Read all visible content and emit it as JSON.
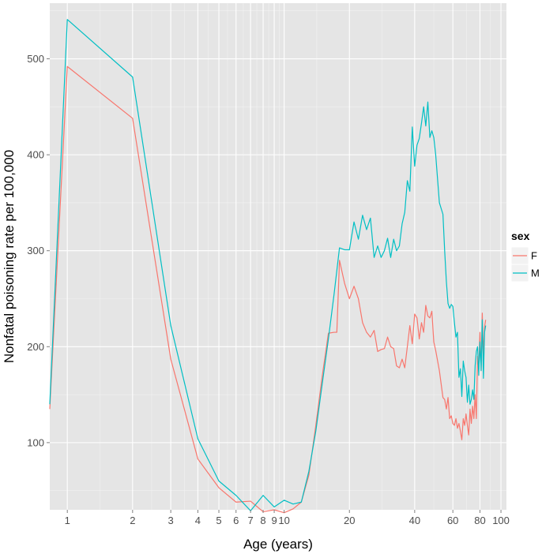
{
  "chart_data": {
    "type": "line",
    "xlabel": "Age (years)",
    "ylabel": "Nonfatal poisoning rate per 100,000",
    "x_scale": "log",
    "xlim": [
      0.83,
      106
    ],
    "ylim": [
      30,
      558
    ],
    "x_ticks": [
      1,
      2,
      3,
      4,
      5,
      6,
      7,
      8,
      9,
      10,
      20,
      40,
      60,
      80,
      100
    ],
    "x_tick_labels": [
      "1",
      "2",
      "3",
      "4",
      "5",
      "6",
      "7",
      "8",
      "9",
      "10",
      "20",
      "40",
      "60",
      "80",
      "100"
    ],
    "y_ticks": [
      100,
      200,
      300,
      400,
      500
    ],
    "y_tick_labels": [
      "100",
      "200",
      "300",
      "400",
      "500"
    ],
    "grid": true,
    "legend": {
      "title": "sex",
      "position": "right"
    },
    "series": [
      {
        "name": "F",
        "color": "#f8766d",
        "points": [
          [
            0.83,
            135
          ],
          [
            1,
            492
          ],
          [
            2,
            438
          ],
          [
            3,
            187
          ],
          [
            4,
            83
          ],
          [
            5,
            53
          ],
          [
            6,
            38
          ],
          [
            7,
            39
          ],
          [
            8,
            28
          ],
          [
            9,
            30
          ],
          [
            10,
            27
          ],
          [
            11,
            31
          ],
          [
            12,
            38
          ],
          [
            13,
            66
          ],
          [
            14,
            118
          ],
          [
            15,
            170
          ],
          [
            16,
            214
          ],
          [
            17,
            215
          ],
          [
            17.5,
            215
          ],
          [
            18,
            290
          ],
          [
            19,
            266
          ],
          [
            20,
            250
          ],
          [
            21,
            263
          ],
          [
            22,
            250
          ],
          [
            23,
            225
          ],
          [
            24,
            215
          ],
          [
            25,
            210
          ],
          [
            26,
            217
          ],
          [
            27,
            195
          ],
          [
            28,
            197
          ],
          [
            29,
            198
          ],
          [
            30,
            210
          ],
          [
            31,
            200
          ],
          [
            32,
            198
          ],
          [
            33,
            180
          ],
          [
            34,
            178
          ],
          [
            35,
            187
          ],
          [
            36,
            178
          ],
          [
            37,
            200
          ],
          [
            38,
            222
          ],
          [
            39,
            203
          ],
          [
            40,
            234
          ],
          [
            41,
            230
          ],
          [
            42,
            208
          ],
          [
            43,
            225
          ],
          [
            44,
            215
          ],
          [
            45,
            243
          ],
          [
            46,
            232
          ],
          [
            47,
            230
          ],
          [
            48,
            237
          ],
          [
            49,
            205
          ],
          [
            50,
            196
          ],
          [
            52,
            175
          ],
          [
            54,
            147
          ],
          [
            55,
            145
          ],
          [
            56,
            135
          ],
          [
            57,
            147
          ],
          [
            58,
            125
          ],
          [
            59,
            128
          ],
          [
            60,
            120
          ],
          [
            61,
            118
          ],
          [
            62,
            125
          ],
          [
            63,
            115
          ],
          [
            64,
            120
          ],
          [
            65,
            112
          ],
          [
            66,
            103
          ],
          [
            67,
            125
          ],
          [
            68,
            118
          ],
          [
            69,
            130
          ],
          [
            70,
            118
          ],
          [
            71,
            108
          ],
          [
            72,
            135
          ],
          [
            73,
            120
          ],
          [
            74,
            138
          ],
          [
            75,
            125
          ],
          [
            76,
            150
          ],
          [
            77,
            125
          ],
          [
            78,
            190
          ],
          [
            79,
            178
          ],
          [
            80,
            215
          ],
          [
            81,
            175
          ],
          [
            82,
            235
          ],
          [
            83,
            190
          ],
          [
            84,
            220
          ],
          [
            85,
            228
          ]
        ]
      },
      {
        "name": "M",
        "color": "#00bfc4",
        "points": [
          [
            0.83,
            140
          ],
          [
            1,
            541
          ],
          [
            2,
            481
          ],
          [
            3,
            222
          ],
          [
            4,
            104
          ],
          [
            5,
            60
          ],
          [
            6,
            45
          ],
          [
            7,
            29
          ],
          [
            8,
            45
          ],
          [
            9,
            33
          ],
          [
            10,
            40
          ],
          [
            11,
            36
          ],
          [
            12,
            38
          ],
          [
            13,
            70
          ],
          [
            14,
            112
          ],
          [
            15,
            162
          ],
          [
            16,
            208
          ],
          [
            17,
            255
          ],
          [
            18,
            303
          ],
          [
            19,
            301
          ],
          [
            20,
            301
          ],
          [
            21,
            330
          ],
          [
            22,
            312
          ],
          [
            23,
            337
          ],
          [
            24,
            322
          ],
          [
            25,
            334
          ],
          [
            26,
            293
          ],
          [
            27,
            305
          ],
          [
            28,
            293
          ],
          [
            29,
            300
          ],
          [
            30,
            313
          ],
          [
            31,
            293
          ],
          [
            32,
            312
          ],
          [
            33,
            300
          ],
          [
            34,
            305
          ],
          [
            35,
            328
          ],
          [
            36,
            340
          ],
          [
            37,
            373
          ],
          [
            38,
            362
          ],
          [
            39,
            429
          ],
          [
            40,
            388
          ],
          [
            41,
            410
          ],
          [
            42,
            417
          ],
          [
            43,
            433
          ],
          [
            44,
            450
          ],
          [
            45,
            430
          ],
          [
            46,
            455
          ],
          [
            47,
            418
          ],
          [
            48,
            425
          ],
          [
            49,
            418
          ],
          [
            50,
            400
          ],
          [
            52,
            350
          ],
          [
            54,
            338
          ],
          [
            55,
            300
          ],
          [
            56,
            268
          ],
          [
            57,
            245
          ],
          [
            58,
            240
          ],
          [
            59,
            244
          ],
          [
            60,
            242
          ],
          [
            61,
            225
          ],
          [
            62,
            210
          ],
          [
            63,
            215
          ],
          [
            64,
            168
          ],
          [
            65,
            177
          ],
          [
            66,
            148
          ],
          [
            67,
            185
          ],
          [
            68,
            175
          ],
          [
            69,
            168
          ],
          [
            70,
            142
          ],
          [
            71,
            160
          ],
          [
            72,
            140
          ],
          [
            73,
            145
          ],
          [
            74,
            155
          ],
          [
            75,
            145
          ],
          [
            76,
            180
          ],
          [
            77,
            195
          ],
          [
            78,
            200
          ],
          [
            79,
            170
          ],
          [
            80,
            205
          ],
          [
            81,
            175
          ],
          [
            82,
            228
          ],
          [
            83,
            167
          ],
          [
            84,
            215
          ],
          [
            85,
            222
          ]
        ]
      }
    ]
  }
}
